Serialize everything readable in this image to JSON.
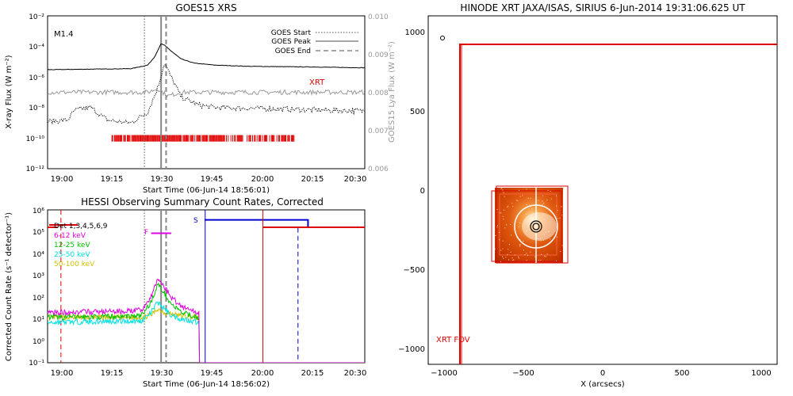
{
  "goes": {
    "title": "GOES15 XRS",
    "flare_class": "M1.4",
    "ylabel_left": "X-ray Flux (W m⁻²)",
    "ylabel_right": "GOES15 Lya Flux (W m⁻²)",
    "xlabel": "Start Time (06-Jun-14 18:56:01)",
    "xrt_label": "XRT",
    "legend": [
      "GOES Start",
      "GOES Peak",
      "GOES End"
    ],
    "yticks_left": [
      "10⁻²",
      "10⁻⁴",
      "10⁻⁶",
      "10⁻⁸",
      "10⁻¹⁰",
      "10⁻¹²"
    ],
    "yticks_right": [
      "0.010",
      "0.009",
      "0.008",
      "0.007",
      "0.006"
    ],
    "xticks": [
      "19:00",
      "19:15",
      "19:30",
      "19:45",
      "20:00",
      "20:15",
      "20:30"
    ]
  },
  "hessi": {
    "title": "HESSI Observing Summary Count Rates, Corrected",
    "ylabel": "Corrected Count Rate (s⁻¹ detector⁻¹)",
    "xlabel": "Start Time (06-Jun-14 18:56:02)",
    "legend": [
      {
        "label": "Det 1,3,4,5,6,9",
        "color": "#000000"
      },
      {
        "label": "6-12 keV",
        "color": "#e000e0"
      },
      {
        "label": "12-25 keV",
        "color": "#00c000"
      },
      {
        "label": "25-50 keV",
        "color": "#00e0e0"
      },
      {
        "label": "50-100 keV",
        "color": "#d0c000"
      }
    ],
    "marker_f": "F",
    "marker_s": "S",
    "yticks": [
      "10⁶",
      "10⁵",
      "10⁴",
      "10³",
      "10²",
      "10¹",
      "10⁰",
      "10⁻¹"
    ],
    "xticks": [
      "19:00",
      "19:15",
      "19:30",
      "19:45",
      "20:00",
      "20:15",
      "20:30"
    ]
  },
  "xrt_map": {
    "title": "HINODE XRT JAXA/ISAS, SIRIUS  6-Jun-2014 19:31:06.625 UT",
    "xlabel": "X (arcsecs)",
    "fov_label": "XRT FOV",
    "xticks": [
      "−1000",
      "−500",
      "0",
      "500",
      "1000"
    ],
    "yticks": [
      "1000",
      "500",
      "0",
      "−500",
      "−1000"
    ]
  },
  "chart_data": [
    {
      "type": "line",
      "title": "GOES15 XRS",
      "xlabel": "Start Time (06-Jun-14 18:56:01)",
      "ylabel": "X-ray Flux (W m⁻²)",
      "yscale": "log",
      "ylim": [
        1e-12,
        0.01
      ],
      "y2lim": [
        0.006,
        0.01
      ],
      "xlim_minutes_after_1856": [
        0,
        95
      ],
      "events_minutes_after_1856": {
        "start": 29,
        "peak": 34,
        "end": 35.5
      },
      "series": [
        {
          "name": "long channel",
          "color": "#000000",
          "x": [
            0,
            25,
            30,
            32,
            34,
            35,
            37,
            40,
            44,
            50,
            60,
            80,
            95
          ],
          "y": [
            3e-06,
            3.5e-06,
            6e-06,
            2e-05,
            0.00015,
            0.00012,
            5e-05,
            1.5e-05,
            8e-06,
            6e-06,
            5e-06,
            4.5e-06,
            4e-06
          ]
        },
        {
          "name": "short channel",
          "color": "#000000",
          "style": "dotted",
          "x": [
            0,
            6,
            8,
            10,
            13,
            16,
            18,
            21,
            25,
            30,
            33,
            35,
            37,
            40,
            45,
            50,
            60,
            70,
            80,
            95
          ],
          "y": [
            1.2e-09,
            1.5e-09,
            6e-09,
            8e-09,
            1e-08,
            3e-09,
            1.5e-09,
            1.2e-09,
            1e-09,
            5e-09,
            2e-07,
            8e-06,
            1e-06,
            5e-08,
            1.5e-08,
            1e-08,
            9e-09,
            8e-09,
            7e-09,
            6e-09
          ]
        },
        {
          "name": "Lya flux",
          "color": "#999999",
          "axis": "right",
          "x": [
            0,
            30,
            33,
            36,
            40,
            60,
            95
          ],
          "y": [
            0.008,
            0.008,
            0.0081,
            0.0079,
            0.008,
            0.008,
            0.008
          ]
        }
      ],
      "xrt_coverage_minutes": [
        19,
        74
      ]
    },
    {
      "type": "line",
      "title": "HESSI Observing Summary Count Rates, Corrected",
      "xlabel": "Start Time (06-Jun-14 18:56:02)",
      "ylabel": "Corrected Count Rate (s⁻¹ detector⁻¹)",
      "yscale": "log",
      "ylim": [
        0.1,
        1000000.0
      ],
      "xlim_minutes_after_1856": [
        0,
        95
      ],
      "series": [
        {
          "name": "6-12 keV",
          "color": "#e000e0",
          "x": [
            0,
            20,
            28,
            31,
            33,
            35,
            37,
            40,
            44,
            45
          ],
          "y": [
            20,
            22,
            25,
            100,
            700,
            300,
            100,
            40,
            22,
            20
          ]
        },
        {
          "name": "12-25 keV",
          "color": "#00c000",
          "x": [
            0,
            20,
            28,
            31,
            33,
            35,
            37,
            40,
            44,
            45
          ],
          "y": [
            12,
            13,
            14,
            60,
            400,
            150,
            50,
            20,
            13,
            12
          ]
        },
        {
          "name": "25-50 keV",
          "color": "#00e0e0",
          "x": [
            0,
            20,
            28,
            31,
            33,
            35,
            37,
            40,
            44,
            45
          ],
          "y": [
            7,
            8,
            8,
            20,
            60,
            30,
            15,
            10,
            8,
            7
          ]
        },
        {
          "name": "50-100 keV",
          "color": "#d0c000",
          "x": [
            0,
            20,
            28,
            31,
            33,
            35,
            40,
            45
          ],
          "y": [
            12,
            12,
            12,
            15,
            30,
            20,
            14,
            12
          ]
        }
      ],
      "night_start_min": 45.5,
      "saa": {
        "start": 47,
        "end": 78
      },
      "flare_flag": {
        "start": 31,
        "end": 37
      },
      "red_dashed_min": 4,
      "blue_dashed_min": 75
    },
    {
      "type": "scatter",
      "title": "HINODE XRT JAXA/ISAS, SIRIUS  6-Jun-2014 19:31:06.625 UT",
      "xlabel": "X (arcsecs)",
      "xlim": [
        -1100,
        1100
      ],
      "ylim": [
        -1100,
        1100
      ],
      "fov": {
        "x1": -900,
        "y1": -1100,
        "x2": 1100,
        "y2": 920
      },
      "image_box": {
        "x1": -680,
        "y1": -460,
        "x2": -250,
        "y2": 15
      },
      "flare_location": {
        "x": -420,
        "y": -230
      },
      "small_circle": {
        "x": -1010,
        "y": 960
      }
    }
  ]
}
